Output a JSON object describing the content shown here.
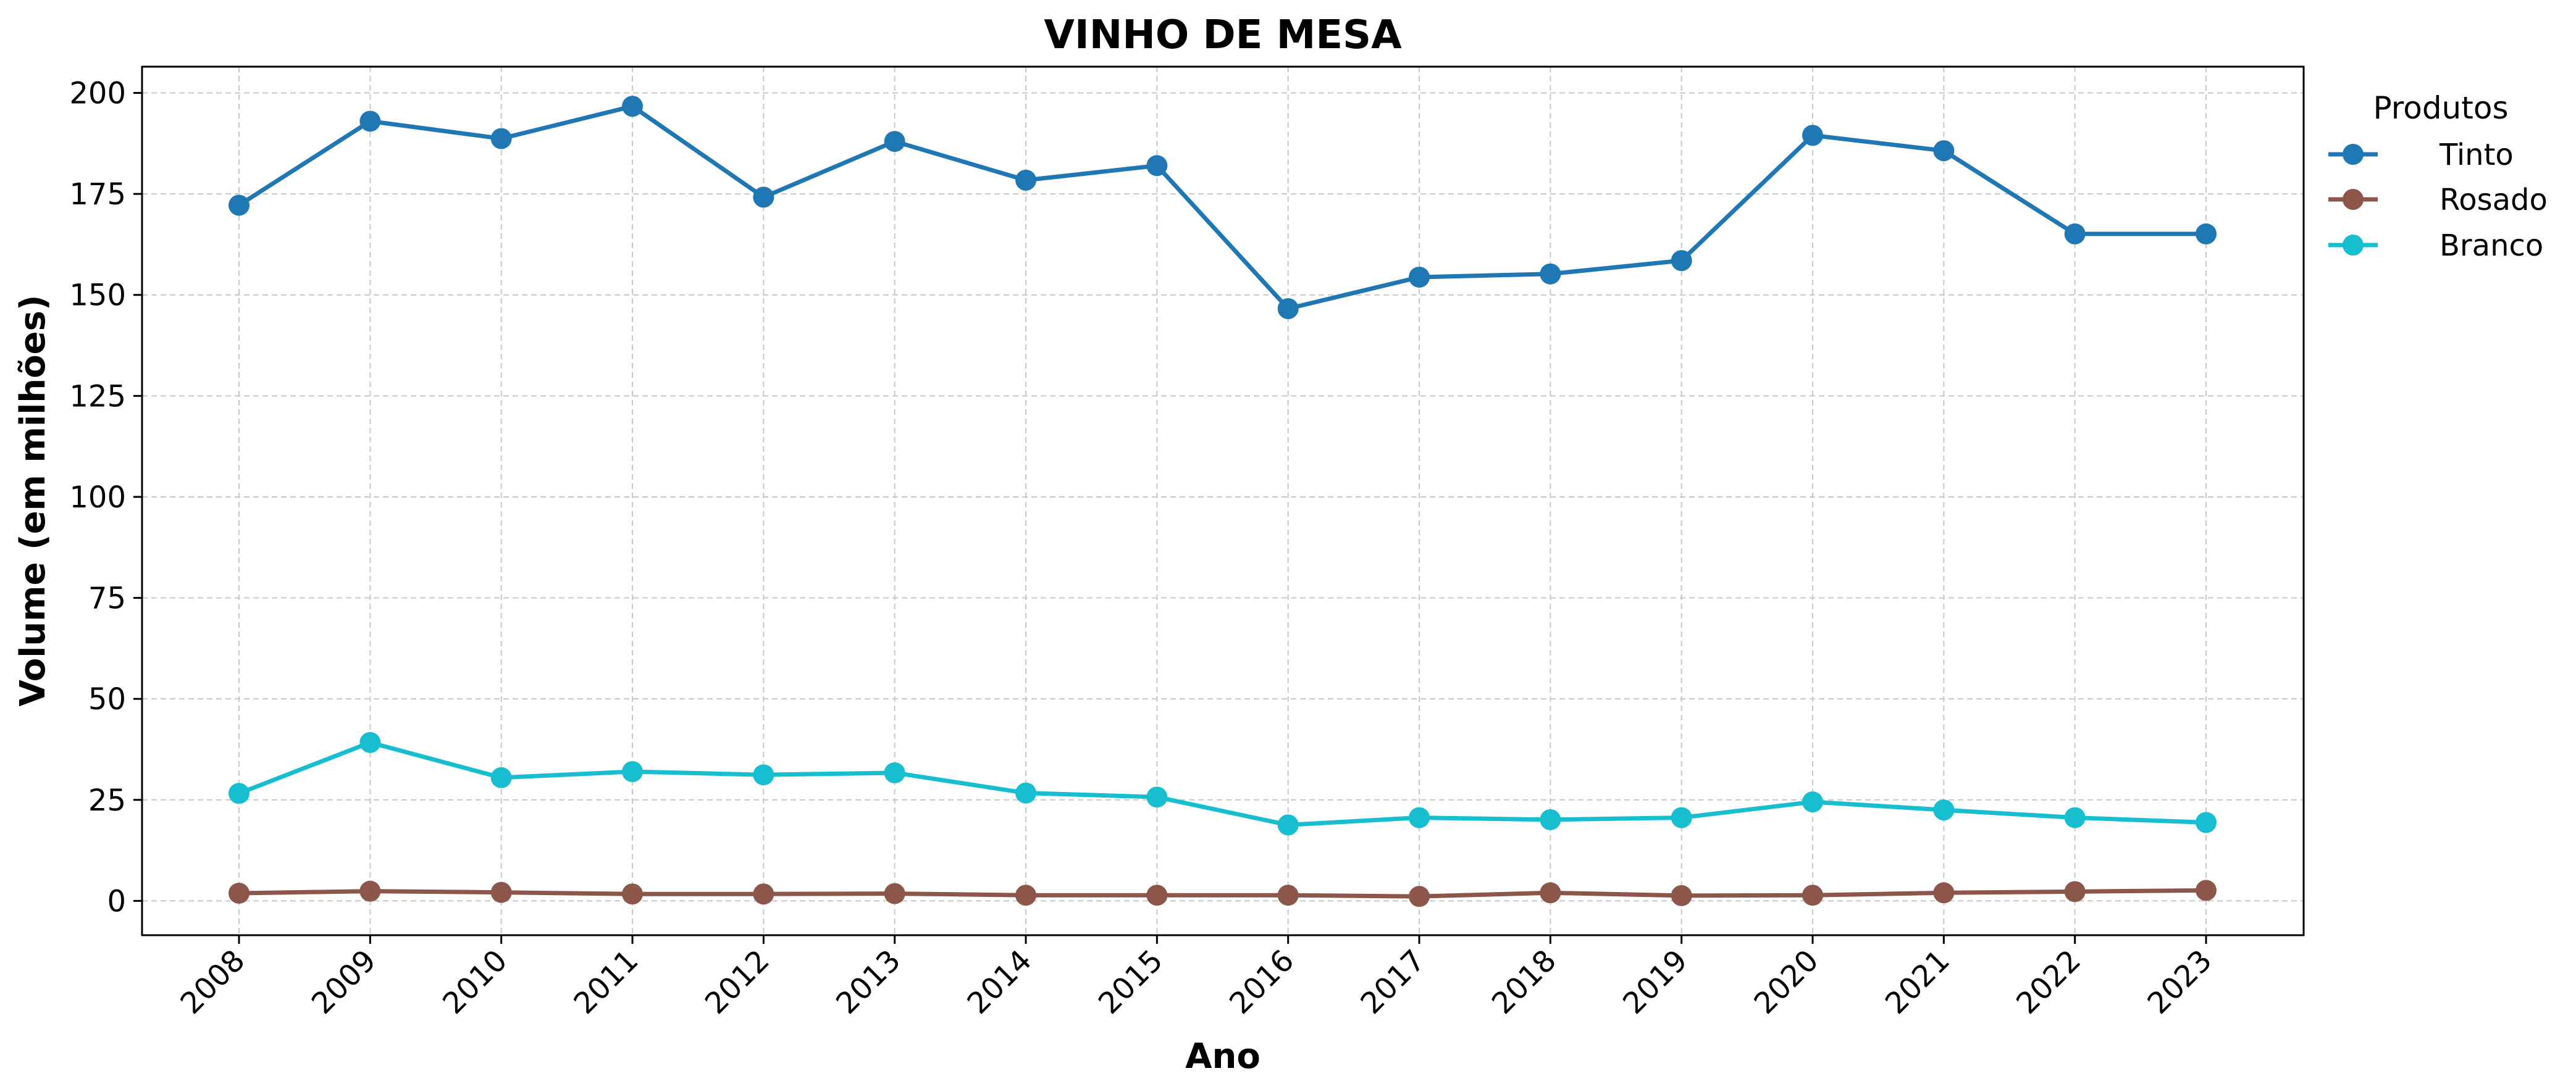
{
  "chart_data": {
    "type": "line",
    "title": "VINHO DE MESA",
    "xlabel": "Ano",
    "ylabel": "Volume (em milhões)",
    "categories": [
      "2008",
      "2009",
      "2010",
      "2011",
      "2012",
      "2013",
      "2014",
      "2015",
      "2016",
      "2017",
      "2018",
      "2019",
      "2020",
      "2021",
      "2022",
      "2023"
    ],
    "y_ticks": [
      0,
      25,
      50,
      75,
      100,
      125,
      150,
      175,
      200
    ],
    "ylim": [
      -8.5,
      206.5
    ],
    "x_tick_rotation_deg": -45,
    "grid": true,
    "legend": {
      "title": "Produtos",
      "placement": "outside-upper-right"
    },
    "series": [
      {
        "name": "Tinto",
        "color": "#1f77b4",
        "marker": "circle",
        "values": [
          172.2,
          193.0,
          188.7,
          196.7,
          174.2,
          188.0,
          178.4,
          182.0,
          146.6,
          154.4,
          155.2,
          158.5,
          189.5,
          185.7,
          165.1,
          165.1
        ]
      },
      {
        "name": "Rosado",
        "color": "#8c564b",
        "marker": "circle",
        "values": [
          1.9,
          2.4,
          2.1,
          1.7,
          1.7,
          1.8,
          1.4,
          1.4,
          1.4,
          1.1,
          2.0,
          1.3,
          1.4,
          2.0,
          2.3,
          2.6
        ]
      },
      {
        "name": "Branco",
        "color": "#17becf",
        "marker": "circle",
        "values": [
          26.6,
          39.2,
          30.5,
          32.0,
          31.2,
          31.7,
          26.7,
          25.7,
          18.8,
          20.6,
          20.1,
          20.6,
          24.5,
          22.5,
          20.6,
          19.4
        ]
      }
    ]
  }
}
